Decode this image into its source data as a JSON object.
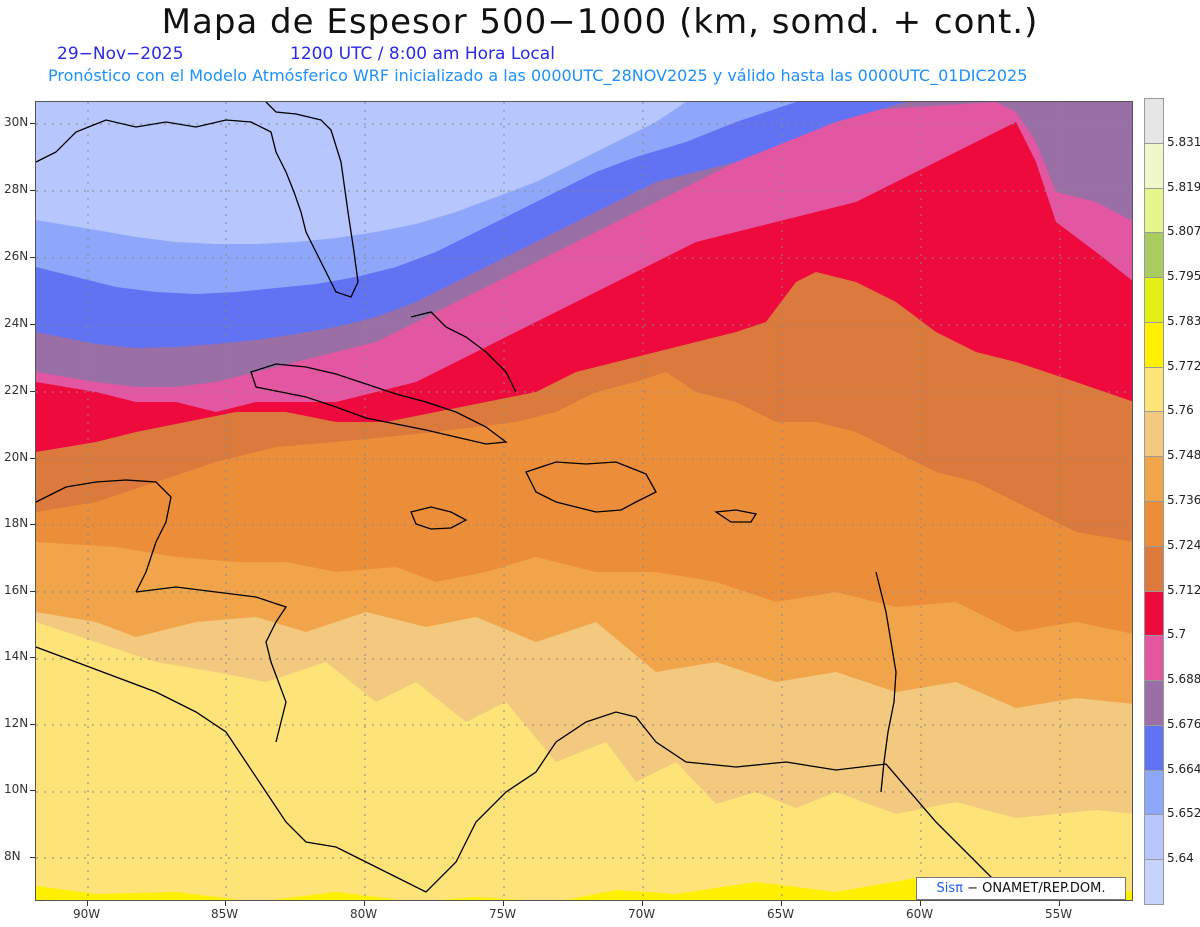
{
  "header": {
    "title": "Mapa de Espesor 500−1000 (km, somd. + cont.)",
    "date": "29−Nov−2025",
    "time": "1200 UTC / 8:00 am Hora Local",
    "forecast_info": "Pronóstico con el Modelo Atmósferico WRF inicializado a las 0000UTC_28NOV2025 y válido hasta las  0000UTC_01DIC2025"
  },
  "map": {
    "lat_labels": [
      "30N",
      "28N",
      "26N",
      "24N",
      "22N",
      "20N",
      "18N",
      "16N",
      "14N",
      "12N",
      "10N",
      "8N"
    ],
    "lon_labels": [
      "90W",
      "85W",
      "80W",
      "75W",
      "70W",
      "65W",
      "60W",
      "55W"
    ],
    "bands": [
      {
        "level": "5.64",
        "color": "#b7c6fd"
      },
      {
        "level": "5.652",
        "color": "#8fa7fa"
      },
      {
        "level": "5.664",
        "color": "#6173f2"
      },
      {
        "level": "5.676",
        "color": "#9a6fa6"
      },
      {
        "level": "5.688",
        "color": "#e356a2"
      },
      {
        "level": "5.7",
        "color": "#ee0a3d"
      },
      {
        "level": "5.712",
        "color": "#db7a3c"
      },
      {
        "level": "5.724",
        "color": "#ec8e39"
      },
      {
        "level": "5.736",
        "color": "#f2a44a"
      },
      {
        "level": "5.748",
        "color": "#f2c97e"
      },
      {
        "level": "5.76",
        "color": "#fde378"
      },
      {
        "level": "5.772",
        "color": "#fff000"
      }
    ]
  },
  "colorbar": {
    "labels": [
      "5.831",
      "5.819",
      "5.807",
      "5.795",
      "5.783",
      "5.772",
      "5.76",
      "5.748",
      "5.736",
      "5.724",
      "5.712",
      "5.7",
      "5.688",
      "5.676",
      "5.664",
      "5.652",
      "5.64"
    ],
    "colors": [
      "#e6e6e6",
      "#f0f7c8",
      "#e6f68c",
      "#a8cc5e",
      "#e2ee14",
      "#fff000",
      "#fde378",
      "#f2c97e",
      "#f2a44a",
      "#ec8e39",
      "#db7a3c",
      "#ee0a3d",
      "#e356a2",
      "#9a6fa6",
      "#6173f2",
      "#8fa7fa",
      "#b7c6fd",
      "#c6d3ff"
    ]
  },
  "credit": {
    "sis": "Sisπ",
    "text": "− ONAMET/REP.DOM."
  }
}
